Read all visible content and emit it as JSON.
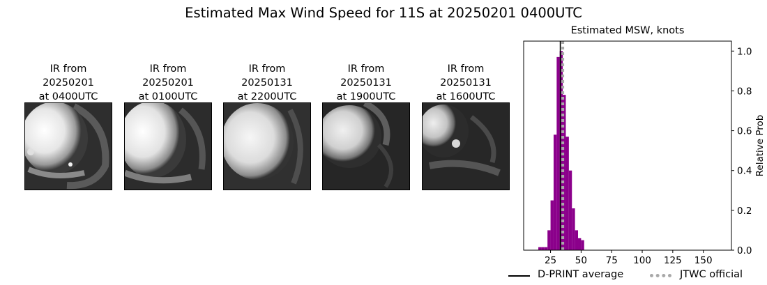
{
  "title": "Estimated Max Wind Speed for 11S at 20250201 0400UTC",
  "ir_panels": [
    {
      "line1": "IR from",
      "line2": "20250201",
      "line3": "at 0400UTC"
    },
    {
      "line1": "IR from",
      "line2": "20250201",
      "line3": "at 0100UTC"
    },
    {
      "line1": "IR from",
      "line2": "20250131",
      "line3": "at 2200UTC"
    },
    {
      "line1": "IR from",
      "line2": "20250131",
      "line3": "at 1900UTC"
    },
    {
      "line1": "IR from",
      "line2": "20250131",
      "line3": "at 1600UTC"
    }
  ],
  "chart_data": {
    "type": "bar",
    "title": "Estimated MSW, knots",
    "xlabel": "",
    "ylabel": "Relative Prob",
    "xlim": [
      3,
      173
    ],
    "ylim": [
      0,
      1.05
    ],
    "xticks": [
      25,
      50,
      75,
      100,
      125,
      150
    ],
    "yticks": [
      0.0,
      0.2,
      0.4,
      0.6,
      0.8,
      1.0
    ],
    "ytick_labels": [
      "0.0",
      "0.2",
      "0.4",
      "0.6",
      "0.8",
      "1.0"
    ],
    "y_axis_side": "right",
    "bin_width": 2.5,
    "bar_color": "#8b008b",
    "bins": [
      {
        "x0": 15,
        "x1": 17.5,
        "value": 0.015
      },
      {
        "x0": 17.5,
        "x1": 20,
        "value": 0.015
      },
      {
        "x0": 20,
        "x1": 22.5,
        "value": 0.015
      },
      {
        "x0": 22.5,
        "x1": 25,
        "value": 0.1
      },
      {
        "x0": 25,
        "x1": 27.5,
        "value": 0.25
      },
      {
        "x0": 27.5,
        "x1": 30,
        "value": 0.58
      },
      {
        "x0": 30,
        "x1": 32.5,
        "value": 0.97
      },
      {
        "x0": 32.5,
        "x1": 35,
        "value": 1.0
      },
      {
        "x0": 35,
        "x1": 37.5,
        "value": 0.78
      },
      {
        "x0": 37.5,
        "x1": 40,
        "value": 0.57
      },
      {
        "x0": 40,
        "x1": 42.5,
        "value": 0.4
      },
      {
        "x0": 42.5,
        "x1": 45,
        "value": 0.21
      },
      {
        "x0": 45,
        "x1": 47.5,
        "value": 0.1
      },
      {
        "x0": 47.5,
        "x1": 50,
        "value": 0.06
      },
      {
        "x0": 50,
        "x1": 52.5,
        "value": 0.05
      }
    ],
    "vlines": [
      {
        "name": "D-PRINT average",
        "x": 33,
        "color": "#000000",
        "style": "solid"
      },
      {
        "name": "JTWC official",
        "x": 35,
        "color": "#a9a9a9",
        "style": "dotted"
      }
    ],
    "legend_position": "bottom-right"
  }
}
